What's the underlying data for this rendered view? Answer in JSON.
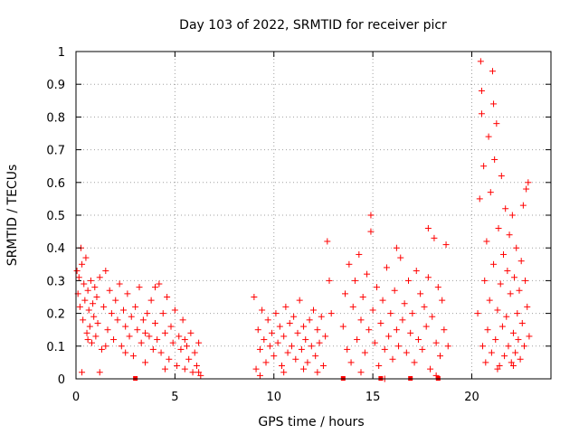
{
  "chart_data": {
    "type": "scatter",
    "title": "Day 103 of 2022, SRMTID for receiver picr",
    "xlabel": "GPS time / hours",
    "ylabel": "SRMTID / TECUs",
    "xlim": [
      0,
      24
    ],
    "ylim": [
      0,
      1
    ],
    "xticks": [
      "0",
      "5",
      "10",
      "15",
      "20"
    ],
    "xtick_values": [
      0,
      5,
      10,
      15,
      20
    ],
    "yticks": [
      "0",
      "0.1",
      "0.2",
      "0.3",
      "0.4",
      "0.5",
      "0.6",
      "0.7",
      "0.8",
      "0.9",
      "1"
    ],
    "ytick_values": [
      0,
      0.1,
      0.2,
      0.3,
      0.4,
      0.5,
      0.6,
      0.7,
      0.8,
      0.9,
      1
    ],
    "grid": true,
    "marker": "+",
    "color": "#ff0000",
    "series": [
      {
        "name": "SRMTID",
        "points": [
          [
            0.05,
            0.33
          ],
          [
            0.1,
            0.26
          ],
          [
            0.15,
            0.31
          ],
          [
            0.2,
            0.22
          ],
          [
            0.25,
            0.4
          ],
          [
            0.3,
            0.35
          ],
          [
            0.35,
            0.18
          ],
          [
            0.4,
            0.29
          ],
          [
            0.45,
            0.24
          ],
          [
            0.5,
            0.37
          ],
          [
            0.55,
            0.14
          ],
          [
            0.6,
            0.27
          ],
          [
            0.65,
            0.21
          ],
          [
            0.7,
            0.16
          ],
          [
            0.75,
            0.3
          ],
          [
            0.8,
            0.11
          ],
          [
            0.85,
            0.23
          ],
          [
            0.9,
            0.19
          ],
          [
            0.95,
            0.28
          ],
          [
            1.0,
            0.13
          ],
          [
            0.3,
            0.02
          ],
          [
            1.05,
            0.25
          ],
          [
            1.1,
            0.17
          ],
          [
            1.2,
            0.31
          ],
          [
            1.3,
            0.09
          ],
          [
            1.4,
            0.22
          ],
          [
            1.5,
            0.33
          ],
          [
            1.6,
            0.15
          ],
          [
            1.7,
            0.27
          ],
          [
            1.8,
            0.2
          ],
          [
            1.9,
            0.12
          ],
          [
            2.0,
            0.24
          ],
          [
            2.1,
            0.18
          ],
          [
            2.2,
            0.29
          ],
          [
            2.3,
            0.1
          ],
          [
            2.4,
            0.21
          ],
          [
            2.5,
            0.16
          ],
          [
            2.6,
            0.26
          ],
          [
            2.7,
            0.13
          ],
          [
            2.8,
            0.19
          ],
          [
            2.9,
            0.07
          ],
          [
            3.0,
            0.22
          ],
          [
            3.1,
            0.15
          ],
          [
            3.2,
            0.28
          ],
          [
            3.3,
            0.11
          ],
          [
            3.4,
            0.18
          ],
          [
            3.5,
            0.05
          ],
          [
            3.6,
            0.2
          ],
          [
            3.7,
            0.13
          ],
          [
            3.8,
            0.24
          ],
          [
            1.2,
            0.02
          ],
          [
            3.9,
            0.09
          ],
          [
            4.0,
            0.17
          ],
          [
            4.1,
            0.12
          ],
          [
            4.2,
            0.29
          ],
          [
            4.3,
            0.08
          ],
          [
            4.4,
            0.2
          ],
          [
            4.5,
            0.14
          ],
          [
            4.6,
            0.25
          ],
          [
            4.7,
            0.06
          ],
          [
            4.8,
            0.16
          ],
          [
            4.9,
            0.11
          ],
          [
            5.0,
            0.21
          ],
          [
            5.1,
            0.04
          ],
          [
            5.2,
            0.13
          ],
          [
            5.3,
            0.09
          ],
          [
            5.4,
            0.18
          ],
          [
            5.5,
            0.03
          ],
          [
            5.6,
            0.1
          ],
          [
            5.7,
            0.06
          ],
          [
            5.8,
            0.14
          ],
          [
            5.9,
            0.02
          ],
          [
            6.0,
            0.08
          ],
          [
            6.1,
            0.04
          ],
          [
            6.2,
            0.11
          ],
          [
            6.3,
            0.01
          ],
          [
            0.6,
            0.12
          ],
          [
            1.5,
            0.1
          ],
          [
            2.5,
            0.08
          ],
          [
            3.5,
            0.14
          ],
          [
            4.5,
            0.03
          ],
          [
            5.5,
            0.12
          ],
          [
            6.2,
            0.02
          ],
          [
            4.0,
            0.28
          ],
          [
            9.0,
            0.25
          ],
          [
            9.1,
            0.03
          ],
          [
            9.2,
            0.15
          ],
          [
            9.3,
            0.09
          ],
          [
            9.4,
            0.21
          ],
          [
            9.5,
            0.12
          ],
          [
            9.6,
            0.05
          ],
          [
            9.7,
            0.18
          ],
          [
            9.8,
            0.1
          ],
          [
            9.9,
            0.14
          ],
          [
            10.0,
            0.07
          ],
          [
            10.1,
            0.2
          ],
          [
            10.2,
            0.11
          ],
          [
            10.3,
            0.16
          ],
          [
            10.4,
            0.04
          ],
          [
            10.5,
            0.13
          ],
          [
            10.6,
            0.22
          ],
          [
            10.7,
            0.08
          ],
          [
            10.8,
            0.17
          ],
          [
            10.9,
            0.1
          ],
          [
            11.0,
            0.19
          ],
          [
            11.1,
            0.06
          ],
          [
            11.2,
            0.14
          ],
          [
            11.3,
            0.24
          ],
          [
            11.4,
            0.09
          ],
          [
            11.5,
            0.16
          ],
          [
            11.6,
            0.12
          ],
          [
            11.7,
            0.05
          ],
          [
            11.8,
            0.18
          ],
          [
            11.9,
            0.1
          ],
          [
            12.0,
            0.21
          ],
          [
            12.1,
            0.07
          ],
          [
            12.2,
            0.15
          ],
          [
            12.3,
            0.11
          ],
          [
            12.4,
            0.19
          ],
          [
            12.5,
            0.04
          ],
          [
            12.6,
            0.13
          ],
          [
            12.7,
            0.42
          ],
          [
            12.8,
            0.3
          ],
          [
            12.9,
            0.2
          ],
          [
            9.3,
            0.01
          ],
          [
            10.5,
            0.02
          ],
          [
            11.5,
            0.03
          ],
          [
            12.2,
            0.02
          ],
          [
            13.5,
            0.16
          ],
          [
            13.6,
            0.26
          ],
          [
            13.7,
            0.09
          ],
          [
            13.8,
            0.35
          ],
          [
            13.9,
            0.05
          ],
          [
            14.0,
            0.22
          ],
          [
            14.1,
            0.3
          ],
          [
            14.2,
            0.12
          ],
          [
            14.3,
            0.38
          ],
          [
            14.4,
            0.18
          ],
          [
            14.5,
            0.25
          ],
          [
            14.6,
            0.08
          ],
          [
            14.7,
            0.32
          ],
          [
            14.8,
            0.15
          ],
          [
            14.9,
            0.45
          ],
          [
            15.0,
            0.21
          ],
          [
            15.1,
            0.11
          ],
          [
            15.2,
            0.28
          ],
          [
            15.3,
            0.04
          ],
          [
            15.4,
            0.17
          ],
          [
            15.5,
            0.24
          ],
          [
            15.6,
            0.09
          ],
          [
            15.7,
            0.34
          ],
          [
            15.8,
            0.13
          ],
          [
            15.9,
            0.2
          ],
          [
            16.0,
            0.06
          ],
          [
            16.1,
            0.27
          ],
          [
            16.2,
            0.15
          ],
          [
            16.3,
            0.1
          ],
          [
            16.4,
            0.37
          ],
          [
            16.5,
            0.18
          ],
          [
            16.6,
            0.23
          ],
          [
            16.7,
            0.08
          ],
          [
            16.8,
            0.3
          ],
          [
            16.9,
            0.14
          ],
          [
            17.0,
            0.2
          ],
          [
            17.1,
            0.05
          ],
          [
            17.2,
            0.33
          ],
          [
            17.3,
            0.12
          ],
          [
            17.4,
            0.26
          ],
          [
            17.5,
            0.09
          ],
          [
            17.6,
            0.22
          ],
          [
            17.7,
            0.16
          ],
          [
            17.8,
            0.31
          ],
          [
            17.9,
            0.03
          ],
          [
            18.0,
            0.19
          ],
          [
            18.1,
            0.43
          ],
          [
            18.2,
            0.11
          ],
          [
            18.3,
            0.28
          ],
          [
            18.4,
            0.07
          ],
          [
            18.5,
            0.24
          ],
          [
            18.6,
            0.15
          ],
          [
            18.7,
            0.41
          ],
          [
            18.8,
            0.1
          ],
          [
            14.9,
            0.5
          ],
          [
            15.6,
            0.0
          ],
          [
            16.2,
            0.4
          ],
          [
            17.8,
            0.46
          ],
          [
            18.2,
            0.01
          ],
          [
            14.4,
            0.02
          ],
          [
            20.3,
            0.2
          ],
          [
            20.4,
            0.55
          ],
          [
            20.45,
            0.97
          ],
          [
            20.5,
            0.81
          ],
          [
            20.55,
            0.1
          ],
          [
            20.6,
            0.65
          ],
          [
            20.65,
            0.3
          ],
          [
            20.7,
            0.05
          ],
          [
            20.75,
            0.42
          ],
          [
            20.8,
            0.15
          ],
          [
            20.85,
            0.74
          ],
          [
            20.9,
            0.24
          ],
          [
            20.95,
            0.57
          ],
          [
            21.0,
            0.08
          ],
          [
            21.05,
            0.94
          ],
          [
            21.1,
            0.35
          ],
          [
            21.15,
            0.67
          ],
          [
            21.2,
            0.12
          ],
          [
            21.25,
            0.78
          ],
          [
            21.3,
            0.21
          ],
          [
            21.35,
            0.46
          ],
          [
            21.4,
            0.04
          ],
          [
            21.45,
            0.29
          ],
          [
            21.5,
            0.62
          ],
          [
            21.55,
            0.16
          ],
          [
            21.6,
            0.38
          ],
          [
            21.65,
            0.07
          ],
          [
            21.7,
            0.52
          ],
          [
            21.75,
            0.19
          ],
          [
            21.8,
            0.33
          ],
          [
            21.85,
            0.1
          ],
          [
            21.9,
            0.44
          ],
          [
            21.95,
            0.26
          ],
          [
            22.0,
            0.05
          ],
          [
            22.05,
            0.5
          ],
          [
            22.1,
            0.14
          ],
          [
            22.15,
            0.31
          ],
          [
            22.2,
            0.08
          ],
          [
            22.25,
            0.4
          ],
          [
            22.3,
            0.2
          ],
          [
            22.35,
            0.12
          ],
          [
            22.4,
            0.27
          ],
          [
            22.45,
            0.06
          ],
          [
            22.5,
            0.36
          ],
          [
            22.55,
            0.17
          ],
          [
            22.6,
            0.53
          ],
          [
            22.65,
            0.1
          ],
          [
            22.7,
            0.3
          ],
          [
            22.75,
            0.58
          ],
          [
            22.8,
            0.22
          ],
          [
            22.85,
            0.6
          ],
          [
            22.9,
            0.13
          ],
          [
            21.1,
            0.84
          ],
          [
            20.5,
            0.88
          ],
          [
            21.3,
            0.03
          ],
          [
            22.1,
            0.04
          ]
        ]
      }
    ],
    "baseline_markers_x": [
      3.0,
      13.5,
      15.4,
      16.9,
      18.3
    ]
  }
}
